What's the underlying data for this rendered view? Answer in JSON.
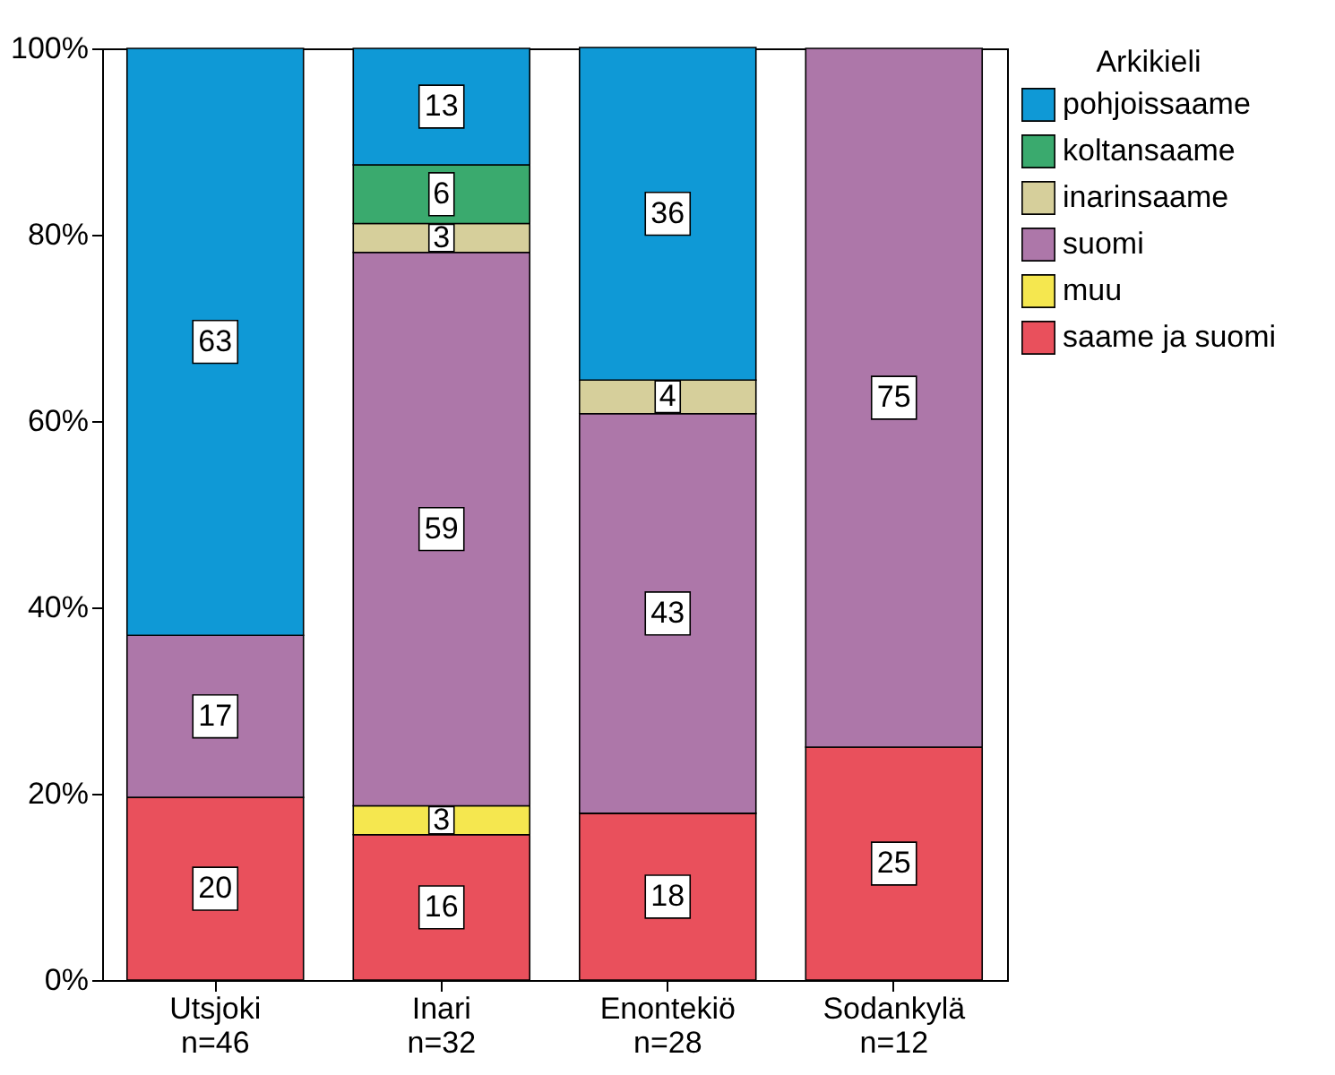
{
  "chart_data": {
    "type": "bar",
    "stacked": true,
    "legend_title": "Arkikieli",
    "legend": "top right",
    "grid": false,
    "categories": [
      "Utsjoki\nn=46",
      "Inari\nn=32",
      "Enontekiö\nn=28",
      "Sodankylä\nn=12"
    ],
    "ylim": [
      0,
      100
    ],
    "yticks": [
      {
        "value": 0,
        "label": "0%"
      },
      {
        "value": 20,
        "label": "20%"
      },
      {
        "value": 40,
        "label": "40%"
      },
      {
        "value": 60,
        "label": "60%"
      },
      {
        "value": 80,
        "label": "80%"
      },
      {
        "value": 100,
        "label": "100%"
      }
    ],
    "series": [
      {
        "name": "saame ja suomi",
        "color": "#e9505c",
        "values": [
          19.6,
          15.6,
          17.9,
          25
        ],
        "value_labels": [
          "20",
          "16",
          "18",
          "25"
        ]
      },
      {
        "name": "muu",
        "color": "#f5e74f",
        "values": [
          null,
          3.1,
          null,
          null
        ],
        "value_labels": [
          null,
          "3",
          null,
          null
        ]
      },
      {
        "name": "suomi",
        "color": "#ad77a9",
        "values": [
          17.4,
          59.4,
          42.9,
          75
        ],
        "value_labels": [
          "17",
          "59",
          "43",
          "75"
        ]
      },
      {
        "name": "inarinsaame",
        "color": "#d6cf9b",
        "values": [
          null,
          3.1,
          3.6,
          null
        ],
        "value_labels": [
          null,
          "3",
          "4",
          null
        ]
      },
      {
        "name": "koltansaame",
        "color": "#3aaa6e",
        "values": [
          null,
          6.3,
          null,
          null
        ],
        "value_labels": [
          null,
          "6",
          null,
          null
        ]
      },
      {
        "name": "pohjoissaame",
        "color": "#0f99d6",
        "values": [
          63,
          12.5,
          35.7,
          null
        ],
        "value_labels": [
          "63",
          "13",
          "36",
          null
        ]
      }
    ]
  }
}
